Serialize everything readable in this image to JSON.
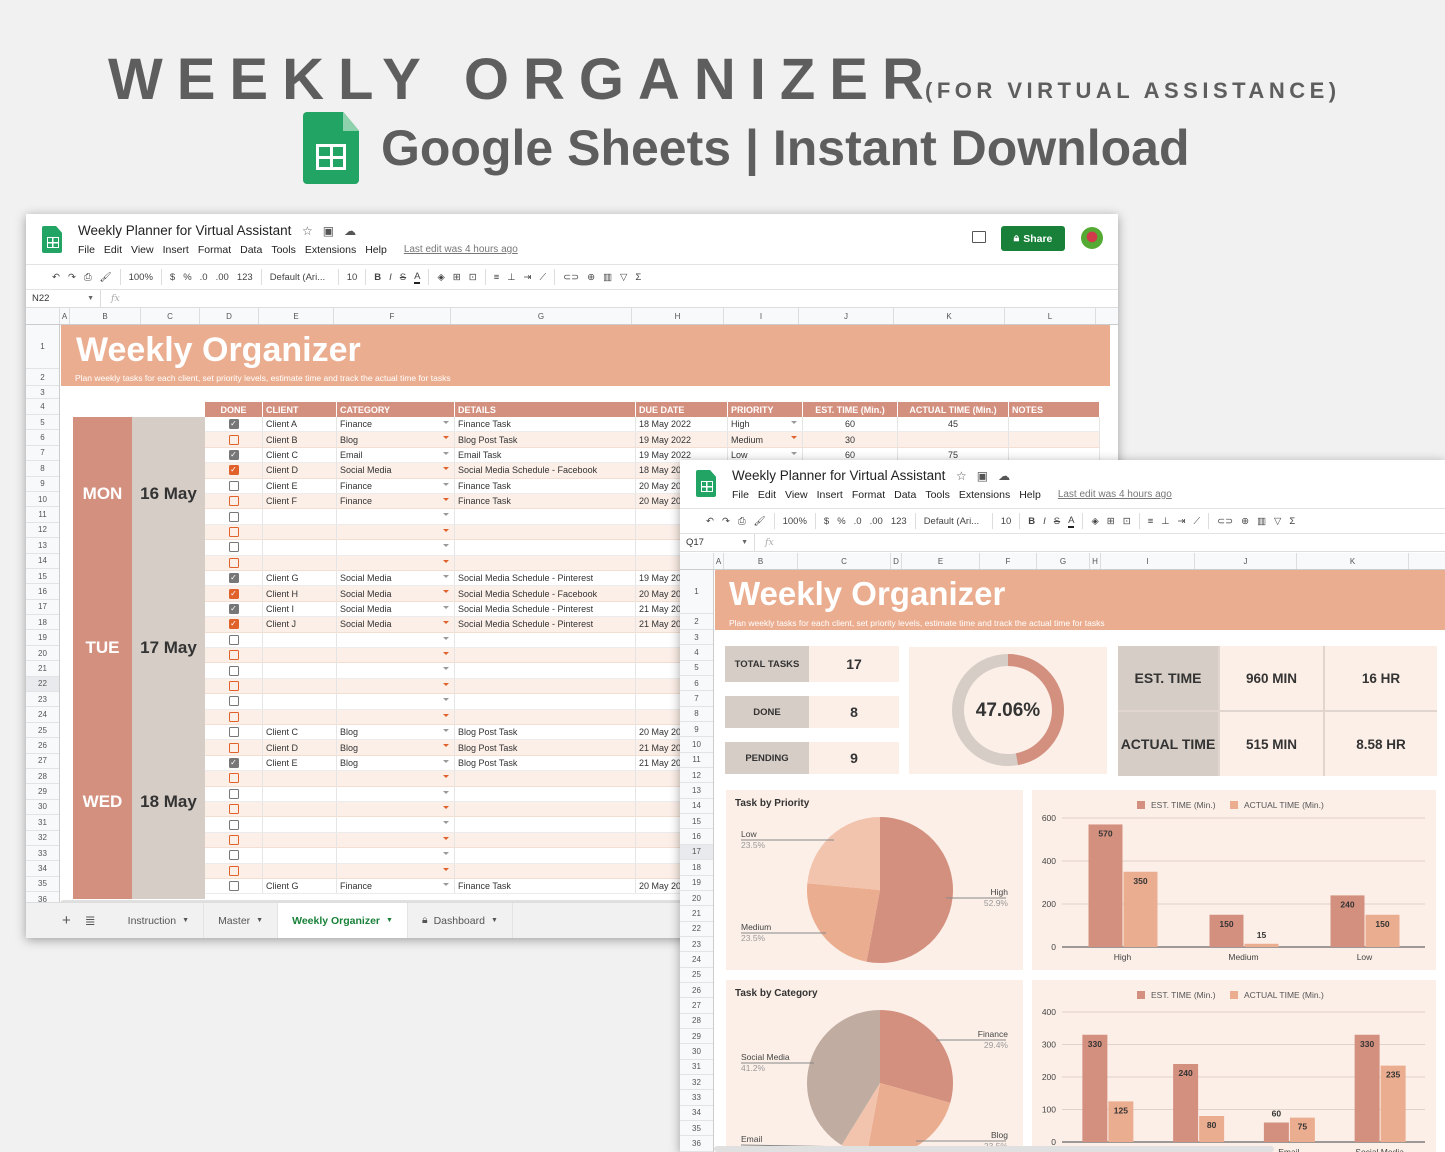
{
  "hero": {
    "title": "WEEKLY ORGANIZER",
    "subtitle": "(FOR VIRTUAL ASSISTANCE)",
    "line2": "Google Sheets | Instant Download"
  },
  "app": {
    "doc_title": "Weekly Planner for Virtual Assistant",
    "menu": [
      "File",
      "Edit",
      "View",
      "Insert",
      "Format",
      "Data",
      "Tools",
      "Extensions",
      "Help"
    ],
    "last_edit": "Last edit was 4 hours ago",
    "share_label": "Share",
    "toolbar": {
      "zoom": "100%",
      "currency": "$",
      "percent": "%",
      "dec_less": ".0",
      "dec_more": ".00",
      "format": "123",
      "font": "Default (Ari...",
      "font_size": "10",
      "bold": "B",
      "italic": "I",
      "strike": "S",
      "textcolor": "A"
    }
  },
  "window1": {
    "name_box": "N22",
    "columns": [
      "A",
      "B",
      "C",
      "D",
      "E",
      "F",
      "G",
      "H",
      "I",
      "J",
      "K",
      "L"
    ],
    "banner_title": "Weekly Organizer",
    "banner_subtitle": "Plan weekly tasks for each client, set priority levels, estimate time and track the actual time for tasks",
    "headers": [
      "DONE",
      "CLIENT",
      "CATEGORY",
      "DETAILS",
      "DUE DATE",
      "PRIORITY",
      "EST. TIME (Min.)",
      "ACTUAL TIME (Min.)",
      "NOTES"
    ],
    "days": [
      {
        "day": "MON",
        "date": "16 May"
      },
      {
        "day": "TUE",
        "date": "17 May"
      },
      {
        "day": "WED",
        "date": "18 May"
      }
    ],
    "rows": [
      {
        "row": "5",
        "done": true,
        "client": "Client A",
        "category": "Finance",
        "details": "Finance Task",
        "due": "18 May 2022",
        "priority": "High",
        "est": "60",
        "actual": "45"
      },
      {
        "row": "6",
        "done": false,
        "client": "Client B",
        "category": "Blog",
        "details": "Blog Post Task",
        "due": "19 May 2022",
        "priority": "Medium",
        "est": "30",
        "actual": ""
      },
      {
        "row": "7",
        "done": true,
        "client": "Client C",
        "category": "Email",
        "details": "Email Task",
        "due": "19 May 2022",
        "priority": "Low",
        "est": "60",
        "actual": "75"
      },
      {
        "row": "8",
        "done": true,
        "client": "Client D",
        "category": "Social Media",
        "details": "Social Media Schedule - Facebook",
        "due": "18 May 20",
        "priority": "",
        "est": "",
        "actual": ""
      },
      {
        "row": "9",
        "done": false,
        "client": "Client E",
        "category": "Finance",
        "details": "Finance Task",
        "due": "20 May 20",
        "priority": "",
        "est": "",
        "actual": ""
      },
      {
        "row": "10",
        "done": false,
        "client": "Client F",
        "category": "Finance",
        "details": "Finance Task",
        "due": "20 May 20",
        "priority": "",
        "est": "",
        "actual": ""
      },
      {
        "row": "11",
        "done": false,
        "client": "",
        "category": "",
        "details": "",
        "due": "",
        "priority": "",
        "est": "",
        "actual": ""
      },
      {
        "row": "12",
        "done": false,
        "client": "",
        "category": "",
        "details": "",
        "due": "",
        "priority": "",
        "est": "",
        "actual": ""
      },
      {
        "row": "13",
        "done": false,
        "client": "",
        "category": "",
        "details": "",
        "due": "",
        "priority": "",
        "est": "",
        "actual": ""
      },
      {
        "row": "14",
        "done": false,
        "client": "",
        "category": "",
        "details": "",
        "due": "",
        "priority": "",
        "est": "",
        "actual": ""
      },
      {
        "row": "15",
        "done": true,
        "client": "Client G",
        "category": "Social Media",
        "details": "Social Media Schedule - Pinterest",
        "due": "19 May 20",
        "priority": "",
        "est": "",
        "actual": ""
      },
      {
        "row": "16",
        "done": true,
        "client": "Client H",
        "category": "Social Media",
        "details": "Social Media Schedule - Facebook",
        "due": "20 May 20",
        "priority": "",
        "est": "",
        "actual": ""
      },
      {
        "row": "17",
        "done": true,
        "client": "Client I",
        "category": "Social Media",
        "details": "Social Media Schedule - Pinterest",
        "due": "21 May 20",
        "priority": "",
        "est": "",
        "actual": ""
      },
      {
        "row": "18",
        "done": true,
        "client": "Client J",
        "category": "Social Media",
        "details": "Social Media Schedule - Pinterest",
        "due": "21 May 20",
        "priority": "",
        "est": "",
        "actual": ""
      },
      {
        "row": "19",
        "done": false,
        "client": "",
        "category": "",
        "details": "",
        "due": "",
        "priority": "",
        "est": "",
        "actual": ""
      },
      {
        "row": "20",
        "done": false,
        "client": "",
        "category": "",
        "details": "",
        "due": "",
        "priority": "",
        "est": "",
        "actual": ""
      },
      {
        "row": "21",
        "done": false,
        "client": "",
        "category": "",
        "details": "",
        "due": "",
        "priority": "",
        "est": "",
        "actual": ""
      },
      {
        "row": "22",
        "done": false,
        "client": "",
        "category": "",
        "details": "",
        "due": "",
        "priority": "",
        "est": "",
        "actual": ""
      },
      {
        "row": "23",
        "done": false,
        "client": "",
        "category": "",
        "details": "",
        "due": "",
        "priority": "",
        "est": "",
        "actual": ""
      },
      {
        "row": "24",
        "done": false,
        "client": "",
        "category": "",
        "details": "",
        "due": "",
        "priority": "",
        "est": "",
        "actual": ""
      },
      {
        "row": "25",
        "done": false,
        "client": "Client C",
        "category": "Blog",
        "details": "Blog Post Task",
        "due": "20 May 20",
        "priority": "",
        "est": "",
        "actual": ""
      },
      {
        "row": "26",
        "done": false,
        "client": "Client D",
        "category": "Blog",
        "details": "Blog Post Task",
        "due": "21 May 20",
        "priority": "",
        "est": "",
        "actual": ""
      },
      {
        "row": "27",
        "done": true,
        "client": "Client E",
        "category": "Blog",
        "details": "Blog Post Task",
        "due": "21 May 20",
        "priority": "",
        "est": "",
        "actual": ""
      },
      {
        "row": "28",
        "done": false,
        "client": "",
        "category": "",
        "details": "",
        "due": "",
        "priority": "",
        "est": "",
        "actual": ""
      },
      {
        "row": "29",
        "done": false,
        "client": "",
        "category": "",
        "details": "",
        "due": "",
        "priority": "",
        "est": "",
        "actual": ""
      },
      {
        "row": "30",
        "done": false,
        "client": "",
        "category": "",
        "details": "",
        "due": "",
        "priority": "",
        "est": "",
        "actual": ""
      },
      {
        "row": "31",
        "done": false,
        "client": "",
        "category": "",
        "details": "",
        "due": "",
        "priority": "",
        "est": "",
        "actual": ""
      },
      {
        "row": "32",
        "done": false,
        "client": "",
        "category": "",
        "details": "",
        "due": "",
        "priority": "",
        "est": "",
        "actual": ""
      },
      {
        "row": "33",
        "done": false,
        "client": "",
        "category": "",
        "details": "",
        "due": "",
        "priority": "",
        "est": "",
        "actual": ""
      },
      {
        "row": "34",
        "done": false,
        "client": "",
        "category": "",
        "details": "",
        "due": "",
        "priority": "",
        "est": "",
        "actual": ""
      },
      {
        "row": "35",
        "done": false,
        "client": "Client G",
        "category": "Finance",
        "details": "Finance Task",
        "due": "20 May 20",
        "priority": "",
        "est": "",
        "actual": ""
      }
    ],
    "sheet_tabs": [
      {
        "label": "Instruction",
        "active": false,
        "locked": false
      },
      {
        "label": "Master",
        "active": false,
        "locked": false
      },
      {
        "label": "Weekly Organizer",
        "active": true,
        "locked": false
      },
      {
        "label": "Dashboard",
        "active": false,
        "locked": true
      }
    ]
  },
  "window2": {
    "name_box": "Q17",
    "columns": [
      "A",
      "B",
      "C",
      "D",
      "E",
      "F",
      "G",
      "H",
      "I",
      "J",
      "K"
    ],
    "banner_title": "Weekly Organizer",
    "banner_subtitle": "Plan weekly tasks for each client, set priority levels, estimate time and track the actual time for tasks",
    "kpis": {
      "total_label": "TOTAL TASKS",
      "total": "17",
      "done_label": "DONE",
      "done": "8",
      "pending_label": "PENDING",
      "pending": "9",
      "completion": "47.06%"
    },
    "time": {
      "est_label": "EST. TIME",
      "est_min": "960 MIN",
      "est_hr": "16 HR",
      "actual_label": "ACTUAL TIME",
      "actual_min": "515 MIN",
      "actual_hr": "8.58 HR"
    },
    "legend": {
      "est": "EST. TIME (Min.)",
      "actual": "ACTUAL TIME (Min.)"
    }
  },
  "colors": {
    "accent": "#d4907f",
    "light": "#ebad8f",
    "pale": "#fcefe8",
    "grey": "#d6cdc6",
    "share": "#188038"
  },
  "chart_data": [
    {
      "type": "pie",
      "title": "Task by Priority",
      "categories": [
        "High",
        "Medium",
        "Low"
      ],
      "values": [
        52.9,
        23.5,
        23.5
      ],
      "colors": [
        "#d4907f",
        "#ebad8f",
        "#f2c4ae"
      ]
    },
    {
      "type": "bar",
      "title": "",
      "categories": [
        "High",
        "Medium",
        "Low"
      ],
      "series": [
        {
          "name": "EST. TIME (Min.)",
          "values": [
            570,
            150,
            240
          ]
        },
        {
          "name": "ACTUAL TIME (Min.)",
          "values": [
            350,
            15,
            150
          ]
        }
      ],
      "ylim": [
        0,
        600
      ],
      "yticks": [
        0,
        200,
        400,
        600
      ],
      "legend_position": "top"
    },
    {
      "type": "pie",
      "title": "Task by Category",
      "categories": [
        "Finance",
        "Blog",
        "Email",
        "Social Media"
      ],
      "values": [
        29.4,
        23.5,
        5.9,
        41.2
      ],
      "colors": [
        "#d4907f",
        "#ebad8f",
        "#f2c4ae",
        "#c0aca0"
      ]
    },
    {
      "type": "bar",
      "title": "",
      "categories": [
        "Finance",
        "Blog",
        "Email",
        "Social Media"
      ],
      "series": [
        {
          "name": "EST. TIME (Min.)",
          "values": [
            330,
            240,
            60,
            330
          ]
        },
        {
          "name": "ACTUAL TIME (Min.)",
          "values": [
            125,
            80,
            75,
            235
          ]
        }
      ],
      "ylim": [
        0,
        400
      ],
      "yticks": [
        0,
        100,
        200,
        300,
        400
      ],
      "legend_position": "top"
    }
  ]
}
